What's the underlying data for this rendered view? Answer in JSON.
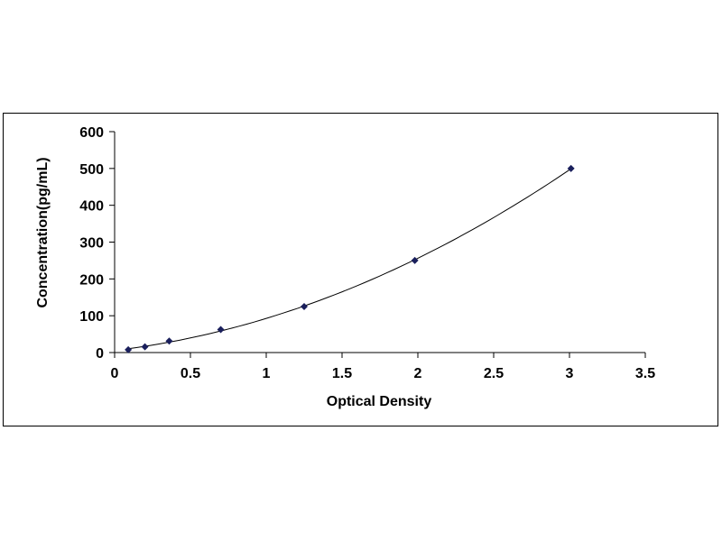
{
  "chart_data": {
    "type": "scatter",
    "title": "",
    "xlabel": "Optical Density",
    "ylabel": "Concentration(pg/mL)",
    "xlim": [
      0,
      3.5
    ],
    "ylim": [
      0,
      600
    ],
    "x_ticks": [
      "0",
      "0.5",
      "1",
      "1.5",
      "2",
      "2.5",
      "3",
      "3.5"
    ],
    "y_ticks": [
      "0",
      "100",
      "200",
      "300",
      "400",
      "500",
      "600"
    ],
    "grid": false,
    "smooth_fit_line": true,
    "marker": "diamond",
    "color": "#1a1f5c",
    "points": [
      {
        "x": 0.09,
        "y": 7.8
      },
      {
        "x": 0.2,
        "y": 15.6
      },
      {
        "x": 0.36,
        "y": 31.2
      },
      {
        "x": 0.7,
        "y": 62.5
      },
      {
        "x": 1.25,
        "y": 125
      },
      {
        "x": 1.98,
        "y": 250
      },
      {
        "x": 3.01,
        "y": 500
      }
    ]
  }
}
